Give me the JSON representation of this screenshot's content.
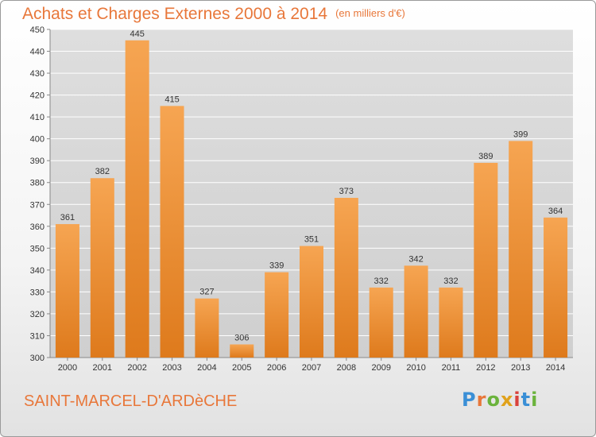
{
  "header": {
    "title": "Achats et Charges Externes 2000 à 2014",
    "unit": "(en milliers d'€)"
  },
  "footer": {
    "commune": "SAINT-MARCEL-D'ARDèCHE",
    "logo_text": "Proxiti"
  },
  "colors": {
    "title": "#e8773a",
    "bar_light": "#f6a552",
    "bar_dark": "#e07b1e",
    "grid": "#ffffff",
    "plot_bg": "#dcdcdc"
  },
  "chart_data": {
    "type": "bar",
    "title": "Achats et Charges Externes 2000 à 2014",
    "subtitle": "(en milliers d'€)",
    "xlabel": "",
    "ylabel": "",
    "categories": [
      "2000",
      "2001",
      "2002",
      "2003",
      "2004",
      "2005",
      "2006",
      "2007",
      "2008",
      "2009",
      "2010",
      "2011",
      "2012",
      "2013",
      "2014"
    ],
    "values": [
      361,
      382,
      445,
      415,
      327,
      306,
      339,
      351,
      373,
      332,
      342,
      332,
      389,
      399,
      364
    ],
    "ylim": [
      300,
      450
    ],
    "yticks": [
      300,
      310,
      320,
      330,
      340,
      350,
      360,
      370,
      380,
      390,
      400,
      410,
      420,
      430,
      440,
      450
    ],
    "grid": true,
    "data_labels": true
  }
}
